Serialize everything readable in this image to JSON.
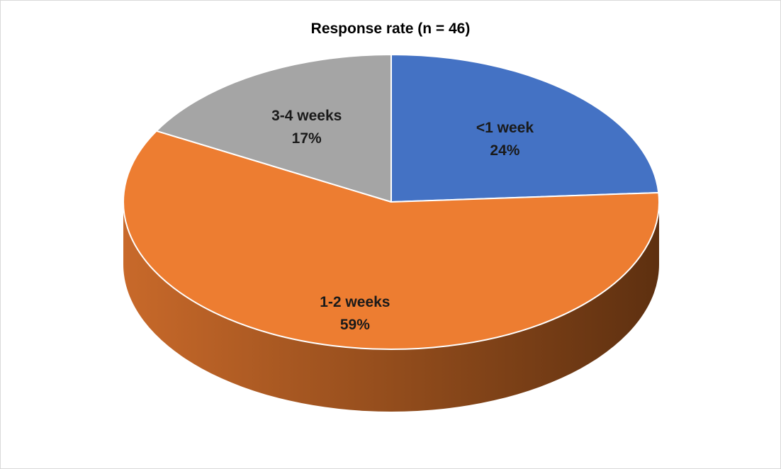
{
  "chart_data": {
    "type": "pie",
    "title": "Response rate (n = 46)",
    "categories": [
      "<1 week",
      "1-2 weeks",
      "3-4 weeks"
    ],
    "values": [
      24,
      59,
      17
    ],
    "value_labels": [
      "24%",
      "59%",
      "17%"
    ],
    "colors": [
      "#4472c4",
      "#ed7d31",
      "#a5a5a5"
    ],
    "side_colors": [
      "#2f528f",
      "#8e4a1b",
      "#7b7b7b"
    ],
    "three_d": true,
    "legend": "none"
  }
}
